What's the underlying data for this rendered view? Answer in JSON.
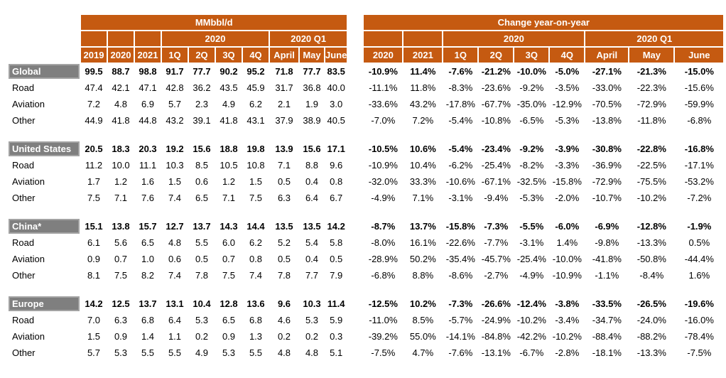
{
  "chart_data": [
    {
      "type": "table",
      "title": "MMbbl/d",
      "span_2020": "2020",
      "span_q1": "2020 Q1",
      "columns": [
        "2019",
        "2020",
        "2021",
        "1Q",
        "2Q",
        "3Q",
        "4Q",
        "April",
        "May",
        "June"
      ],
      "groups": [
        {
          "rows": [
            {
              "label": "Global",
              "bold": true,
              "values": [
                "99.5",
                "88.7",
                "98.8",
                "91.7",
                "77.7",
                "90.2",
                "95.2",
                "71.8",
                "77.7",
                "83.5"
              ]
            },
            {
              "label": "Road",
              "bold": false,
              "values": [
                "47.4",
                "42.1",
                "47.1",
                "42.8",
                "36.2",
                "43.5",
                "45.9",
                "31.7",
                "36.8",
                "40.0"
              ]
            },
            {
              "label": "Aviation",
              "bold": false,
              "values": [
                "7.2",
                "4.8",
                "6.9",
                "5.7",
                "2.3",
                "4.9",
                "6.2",
                "2.1",
                "1.9",
                "3.0"
              ]
            },
            {
              "label": "Other",
              "bold": false,
              "values": [
                "44.9",
                "41.8",
                "44.8",
                "43.2",
                "39.1",
                "41.8",
                "43.1",
                "37.9",
                "38.9",
                "40.5"
              ]
            }
          ]
        },
        {
          "rows": [
            {
              "label": "United States",
              "bold": true,
              "values": [
                "20.5",
                "18.3",
                "20.3",
                "19.2",
                "15.6",
                "18.8",
                "19.8",
                "13.9",
                "15.6",
                "17.1"
              ]
            },
            {
              "label": "Road",
              "bold": false,
              "values": [
                "11.2",
                "10.0",
                "11.1",
                "10.3",
                "8.5",
                "10.5",
                "10.8",
                "7.1",
                "8.8",
                "9.6"
              ]
            },
            {
              "label": "Aviation",
              "bold": false,
              "values": [
                "1.7",
                "1.2",
                "1.6",
                "1.5",
                "0.6",
                "1.2",
                "1.5",
                "0.5",
                "0.4",
                "0.8"
              ]
            },
            {
              "label": "Other",
              "bold": false,
              "values": [
                "7.5",
                "7.1",
                "7.6",
                "7.4",
                "6.5",
                "7.1",
                "7.5",
                "6.3",
                "6.4",
                "6.7"
              ]
            }
          ]
        },
        {
          "rows": [
            {
              "label": "China*",
              "bold": true,
              "values": [
                "15.1",
                "13.8",
                "15.7",
                "12.7",
                "13.7",
                "14.3",
                "14.4",
                "13.5",
                "13.5",
                "14.2"
              ]
            },
            {
              "label": "Road",
              "bold": false,
              "values": [
                "6.1",
                "5.6",
                "6.5",
                "4.8",
                "5.5",
                "6.0",
                "6.2",
                "5.2",
                "5.4",
                "5.8"
              ]
            },
            {
              "label": "Aviation",
              "bold": false,
              "values": [
                "0.9",
                "0.7",
                "1.0",
                "0.6",
                "0.5",
                "0.7",
                "0.8",
                "0.5",
                "0.4",
                "0.5"
              ]
            },
            {
              "label": "Other",
              "bold": false,
              "values": [
                "8.1",
                "7.5",
                "8.2",
                "7.4",
                "7.8",
                "7.5",
                "7.4",
                "7.8",
                "7.7",
                "7.9"
              ]
            }
          ]
        },
        {
          "rows": [
            {
              "label": "Europe",
              "bold": true,
              "values": [
                "14.2",
                "12.5",
                "13.7",
                "13.1",
                "10.4",
                "12.8",
                "13.6",
                "9.6",
                "10.3",
                "11.4"
              ]
            },
            {
              "label": "Road",
              "bold": false,
              "values": [
                "7.0",
                "6.3",
                "6.8",
                "6.4",
                "5.3",
                "6.5",
                "6.8",
                "4.6",
                "5.3",
                "5.9"
              ]
            },
            {
              "label": "Aviation",
              "bold": false,
              "values": [
                "1.5",
                "0.9",
                "1.4",
                "1.1",
                "0.2",
                "0.9",
                "1.3",
                "0.2",
                "0.2",
                "0.3"
              ]
            },
            {
              "label": "Other",
              "bold": false,
              "values": [
                "5.7",
                "5.3",
                "5.5",
                "5.5",
                "4.9",
                "5.3",
                "5.5",
                "4.8",
                "4.8",
                "5.1"
              ]
            }
          ]
        }
      ]
    },
    {
      "type": "table",
      "title": "Change year-on-year",
      "span_2020": "2020",
      "span_q1": "2020 Q1",
      "columns": [
        "2020",
        "2021",
        "1Q",
        "2Q",
        "3Q",
        "4Q",
        "April",
        "May",
        "June"
      ],
      "groups": [
        {
          "rows": [
            {
              "bold": true,
              "values": [
                "-10.9%",
                "11.4%",
                "-7.6%",
                "-21.2%",
                "-10.0%",
                "-5.0%",
                "-27.1%",
                "-21.3%",
                "-15.0%"
              ]
            },
            {
              "bold": false,
              "values": [
                "-11.1%",
                "11.8%",
                "-8.3%",
                "-23.6%",
                "-9.2%",
                "-3.5%",
                "-33.0%",
                "-22.3%",
                "-15.6%"
              ]
            },
            {
              "bold": false,
              "values": [
                "-33.6%",
                "43.2%",
                "-17.8%",
                "-67.7%",
                "-35.0%",
                "-12.9%",
                "-70.5%",
                "-72.9%",
                "-59.9%"
              ]
            },
            {
              "bold": false,
              "values": [
                "-7.0%",
                "7.2%",
                "-5.4%",
                "-10.8%",
                "-6.5%",
                "-5.3%",
                "-13.8%",
                "-11.8%",
                "-6.8%"
              ]
            }
          ]
        },
        {
          "rows": [
            {
              "bold": true,
              "values": [
                "-10.5%",
                "10.6%",
                "-5.4%",
                "-23.4%",
                "-9.2%",
                "-3.9%",
                "-30.8%",
                "-22.8%",
                "-16.8%"
              ]
            },
            {
              "bold": false,
              "values": [
                "-10.9%",
                "10.4%",
                "-6.2%",
                "-25.4%",
                "-8.2%",
                "-3.3%",
                "-36.9%",
                "-22.5%",
                "-17.1%"
              ]
            },
            {
              "bold": false,
              "values": [
                "-32.0%",
                "33.3%",
                "-10.6%",
                "-67.1%",
                "-32.5%",
                "-15.8%",
                "-72.9%",
                "-75.5%",
                "-53.2%"
              ]
            },
            {
              "bold": false,
              "values": [
                "-4.9%",
                "7.1%",
                "-3.1%",
                "-9.4%",
                "-5.3%",
                "-2.0%",
                "-10.7%",
                "-10.2%",
                "-7.2%"
              ]
            }
          ]
        },
        {
          "rows": [
            {
              "bold": true,
              "values": [
                "-8.7%",
                "13.7%",
                "-15.8%",
                "-7.3%",
                "-5.5%",
                "-6.0%",
                "-6.9%",
                "-12.8%",
                "-1.9%"
              ]
            },
            {
              "bold": false,
              "values": [
                "-8.0%",
                "16.1%",
                "-22.6%",
                "-7.7%",
                "-3.1%",
                "1.4%",
                "-9.8%",
                "-13.3%",
                "0.5%"
              ]
            },
            {
              "bold": false,
              "values": [
                "-28.9%",
                "50.2%",
                "-35.4%",
                "-45.7%",
                "-25.4%",
                "-10.0%",
                "-41.8%",
                "-50.8%",
                "-44.4%"
              ]
            },
            {
              "bold": false,
              "values": [
                "-6.8%",
                "8.8%",
                "-8.6%",
                "-2.7%",
                "-4.9%",
                "-10.9%",
                "-1.1%",
                "-8.4%",
                "1.6%"
              ]
            }
          ]
        },
        {
          "rows": [
            {
              "bold": true,
              "values": [
                "-12.5%",
                "10.2%",
                "-7.3%",
                "-26.6%",
                "-12.4%",
                "-3.8%",
                "-33.5%",
                "-26.5%",
                "-19.6%"
              ]
            },
            {
              "bold": false,
              "values": [
                "-11.0%",
                "8.5%",
                "-5.7%",
                "-24.9%",
                "-10.2%",
                "-3.4%",
                "-34.7%",
                "-24.0%",
                "-16.0%"
              ]
            },
            {
              "bold": false,
              "values": [
                "-39.2%",
                "55.0%",
                "-14.1%",
                "-84.8%",
                "-42.2%",
                "-10.2%",
                "-88.4%",
                "-88.2%",
                "-78.4%"
              ]
            },
            {
              "bold": false,
              "values": [
                "-7.5%",
                "4.7%",
                "-7.6%",
                "-13.1%",
                "-6.7%",
                "-2.8%",
                "-18.1%",
                "-13.3%",
                "-7.5%"
              ]
            }
          ]
        }
      ]
    }
  ],
  "colors": {
    "header_orange": "#C55A11",
    "section_gray": "#7f7f7f",
    "header_text": "#ffffff",
    "body_text": "#000000"
  }
}
